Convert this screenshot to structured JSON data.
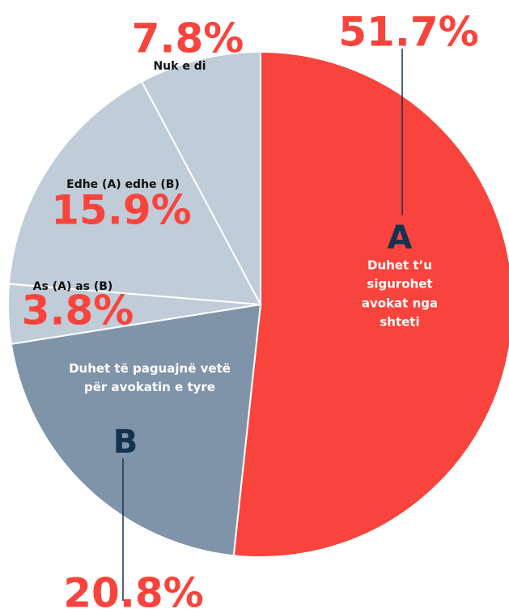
{
  "chart_data": {
    "type": "pie",
    "categories": [
      "Duhet t’u sigurohet avokat nga shteti",
      "Duhet të paguajnë vetë për avokatin e tyre",
      "As (A) as (B)",
      "Edhe (A) edhe (B)",
      "Nuk e di"
    ],
    "letters": [
      "A",
      "B",
      null,
      null,
      null
    ],
    "values": [
      51.7,
      20.8,
      3.8,
      15.9,
      7.8
    ],
    "value_labels": [
      "51.7%",
      "20.8%",
      "3.8%",
      "15.9%",
      "7.8%"
    ],
    "colors": [
      "#f8443c",
      "#7f94a9",
      "#c0ccd7",
      "#c0ccd7",
      "#c0ccd7"
    ]
  }
}
